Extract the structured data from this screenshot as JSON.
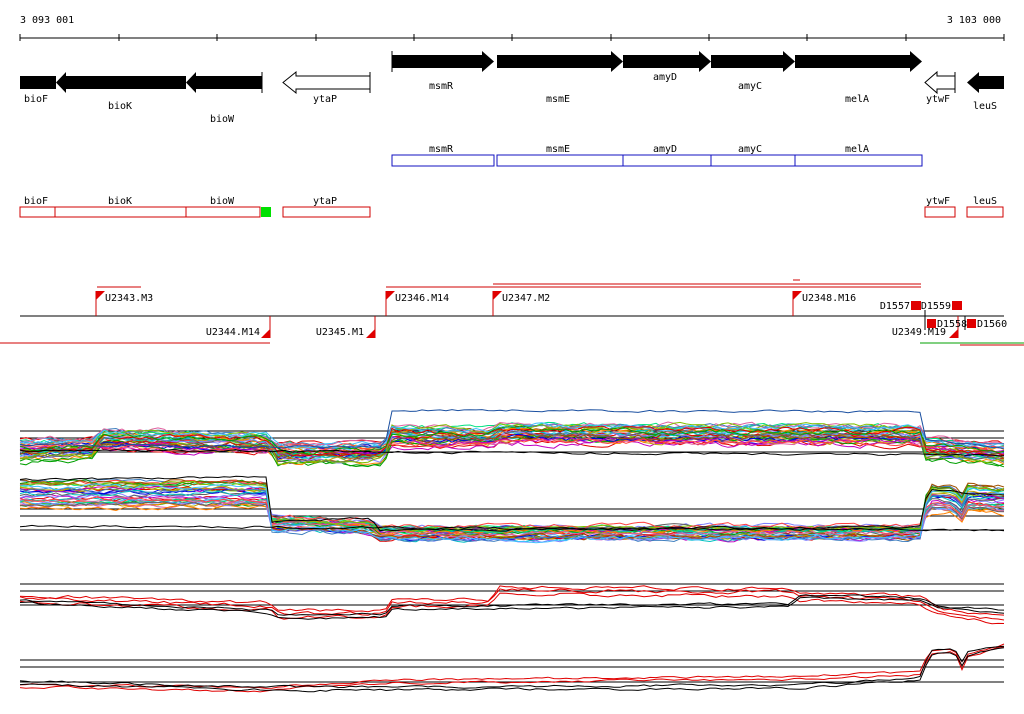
{
  "ruler": {
    "start_label": "3 093 001",
    "end_label": "3 103 000"
  },
  "colors": {
    "gene_fill": "#000000",
    "gene_open": "#ffffff",
    "cds_blue": "#1010c0",
    "cds_red": "#d00000",
    "promoter_green": "#00e000",
    "marker_red": "#e00000",
    "trace_black": "#000000",
    "trace_red": "#e00000"
  },
  "genes": [
    {
      "name": "bioF",
      "filled": true,
      "strand": "-"
    },
    {
      "name": "bioK",
      "filled": true,
      "strand": "-"
    },
    {
      "name": "bioW",
      "filled": true,
      "strand": "-"
    },
    {
      "name": "ytaP",
      "filled": false,
      "strand": "-"
    },
    {
      "name": "msmR",
      "filled": true,
      "strand": "+"
    },
    {
      "name": "msmE",
      "filled": true,
      "strand": "+"
    },
    {
      "name": "amyD",
      "filled": true,
      "strand": "+"
    },
    {
      "name": "amyC",
      "filled": true,
      "strand": "+"
    },
    {
      "name": "melA",
      "filled": true,
      "strand": "+"
    },
    {
      "name": "ytwF",
      "filled": false,
      "strand": "-"
    },
    {
      "name": "leuS",
      "filled": true,
      "strand": "-"
    }
  ],
  "blue_boxes": [
    "msmR",
    "msmE",
    "amyD",
    "amyC",
    "melA"
  ],
  "red_boxes": [
    "bioF",
    "bioK",
    "bioW",
    "ytaP",
    "ytwF",
    "leuS"
  ],
  "upper_markers": [
    "U2343.M3",
    "U2346.M14",
    "U2347.M2",
    "U2348.M16"
  ],
  "lower_markers": [
    "U2344.M14",
    "U2345.M1",
    "U2349.M19"
  ],
  "d_markers": [
    "D1557",
    "D1559",
    "D1558",
    "D1560"
  ]
}
